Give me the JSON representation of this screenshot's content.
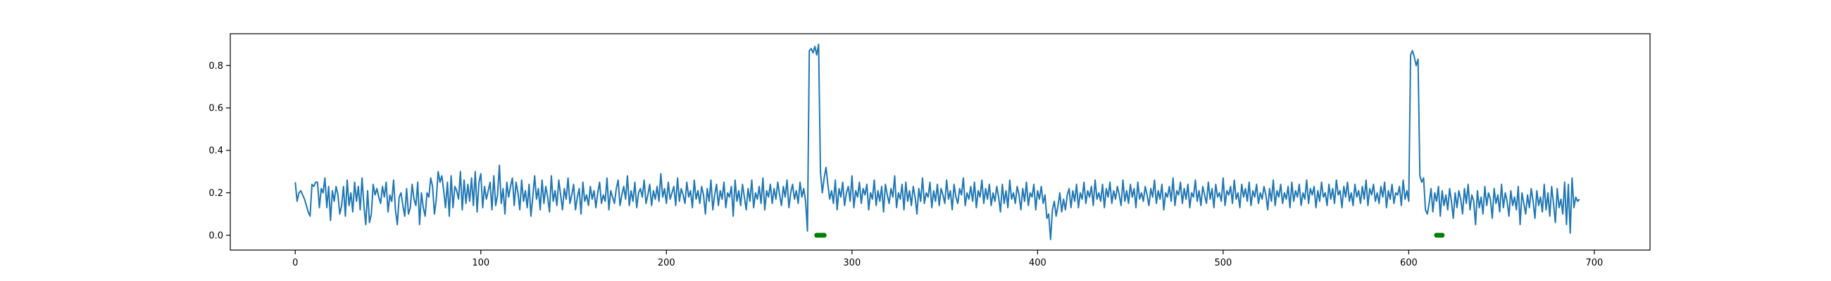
{
  "chart_data": {
    "type": "line",
    "title": "",
    "xlabel": "",
    "ylabel": "",
    "xlim": [
      -35,
      730
    ],
    "ylim": [
      -0.07,
      0.95
    ],
    "xticks": [
      0,
      100,
      200,
      300,
      400,
      500,
      600,
      700
    ],
    "yticks": [
      0.0,
      0.2,
      0.4,
      0.6,
      0.8
    ],
    "xtick_labels": [
      "0",
      "100",
      "200",
      "300",
      "400",
      "500",
      "600",
      "700"
    ],
    "ytick_labels": [
      "0.0",
      "0.2",
      "0.4",
      "0.6",
      "0.8"
    ],
    "grid": false,
    "legend": "none",
    "series": [
      {
        "color": "#1f77b4",
        "x_start": 0,
        "x_step": 1,
        "values": [
          0.25,
          0.16,
          0.2,
          0.21,
          0.19,
          0.17,
          0.14,
          0.11,
          0.09,
          0.24,
          0.23,
          0.25,
          0.25,
          0.13,
          0.22,
          0.2,
          0.27,
          0.13,
          0.23,
          0.07,
          0.21,
          0.16,
          0.23,
          0.19,
          0.1,
          0.14,
          0.23,
          0.09,
          0.26,
          0.14,
          0.2,
          0.11,
          0.25,
          0.16,
          0.23,
          0.12,
          0.27,
          0.14,
          0.05,
          0.21,
          0.06,
          0.1,
          0.24,
          0.19,
          0.22,
          0.18,
          0.15,
          0.23,
          0.18,
          0.25,
          0.11,
          0.19,
          0.16,
          0.26,
          0.12,
          0.05,
          0.18,
          0.2,
          0.14,
          0.09,
          0.22,
          0.1,
          0.13,
          0.24,
          0.17,
          0.14,
          0.25,
          0.05,
          0.2,
          0.13,
          0.09,
          0.2,
          0.18,
          0.27,
          0.23,
          0.1,
          0.17,
          0.3,
          0.25,
          0.28,
          0.21,
          0.13,
          0.25,
          0.09,
          0.28,
          0.13,
          0.23,
          0.21,
          0.17,
          0.3,
          0.12,
          0.26,
          0.15,
          0.24,
          0.16,
          0.27,
          0.14,
          0.3,
          0.11,
          0.25,
          0.29,
          0.13,
          0.23,
          0.17,
          0.21,
          0.25,
          0.12,
          0.28,
          0.14,
          0.19,
          0.33,
          0.15,
          0.22,
          0.1,
          0.25,
          0.18,
          0.23,
          0.27,
          0.14,
          0.25,
          0.2,
          0.12,
          0.26,
          0.16,
          0.21,
          0.13,
          0.24,
          0.09,
          0.18,
          0.28,
          0.17,
          0.22,
          0.12,
          0.26,
          0.15,
          0.23,
          0.18,
          0.11,
          0.28,
          0.16,
          0.21,
          0.14,
          0.26,
          0.19,
          0.12,
          0.22,
          0.17,
          0.27,
          0.15,
          0.19,
          0.24,
          0.12,
          0.18,
          0.22,
          0.1,
          0.25,
          0.16,
          0.19,
          0.14,
          0.23,
          0.17,
          0.21,
          0.13,
          0.2,
          0.25,
          0.15,
          0.19,
          0.16,
          0.27,
          0.12,
          0.21,
          0.18,
          0.15,
          0.22,
          0.26,
          0.14,
          0.19,
          0.23,
          0.17,
          0.28,
          0.14,
          0.21,
          0.16,
          0.25,
          0.13,
          0.2,
          0.22,
          0.18,
          0.26,
          0.15,
          0.19,
          0.24,
          0.14,
          0.21,
          0.17,
          0.23,
          0.16,
          0.29,
          0.18,
          0.22,
          0.15,
          0.25,
          0.17,
          0.2,
          0.23,
          0.14,
          0.27,
          0.16,
          0.22,
          0.19,
          0.15,
          0.25,
          0.18,
          0.21,
          0.13,
          0.26,
          0.17,
          0.21,
          0.15,
          0.23,
          0.19,
          0.1,
          0.22,
          0.16,
          0.26,
          0.12,
          0.19,
          0.24,
          0.14,
          0.21,
          0.17,
          0.25,
          0.13,
          0.2,
          0.18,
          0.23,
          0.09,
          0.26,
          0.16,
          0.21,
          0.14,
          0.24,
          0.18,
          0.12,
          0.22,
          0.16,
          0.26,
          0.13,
          0.2,
          0.17,
          0.23,
          0.15,
          0.27,
          0.12,
          0.21,
          0.18,
          0.24,
          0.15,
          0.22,
          0.17,
          0.25,
          0.19,
          0.14,
          0.23,
          0.18,
          0.26,
          0.13,
          0.2,
          0.24,
          0.17,
          0.21,
          0.15,
          0.25,
          0.18,
          0.22,
          0.16,
          0.02,
          0.87,
          0.88,
          0.86,
          0.89,
          0.85,
          0.9,
          0.3,
          0.2,
          0.27,
          0.32,
          0.24,
          0.17,
          0.21,
          0.15,
          0.26,
          0.12,
          0.22,
          0.18,
          0.25,
          0.14,
          0.2,
          0.23,
          0.16,
          0.28,
          0.13,
          0.21,
          0.18,
          0.25,
          0.15,
          0.22,
          0.19,
          0.24,
          0.12,
          0.2,
          0.17,
          0.26,
          0.14,
          0.21,
          0.16,
          0.23,
          0.11,
          0.24,
          0.19,
          0.15,
          0.22,
          0.18,
          0.28,
          0.13,
          0.2,
          0.17,
          0.24,
          0.12,
          0.25,
          0.16,
          0.21,
          0.14,
          0.23,
          0.18,
          0.1,
          0.22,
          0.16,
          0.27,
          0.15,
          0.2,
          0.18,
          0.25,
          0.13,
          0.21,
          0.16,
          0.24,
          0.14,
          0.22,
          0.19,
          0.15,
          0.26,
          0.17,
          0.21,
          0.12,
          0.24,
          0.18,
          0.15,
          0.22,
          0.19,
          0.27,
          0.14,
          0.2,
          0.17,
          0.23,
          0.16,
          0.25,
          0.13,
          0.21,
          0.18,
          0.26,
          0.15,
          0.22,
          0.17,
          0.24,
          0.14,
          0.2,
          0.16,
          0.23,
          0.18,
          0.11,
          0.24,
          0.15,
          0.21,
          0.13,
          0.26,
          0.17,
          0.2,
          0.15,
          0.23,
          0.19,
          0.12,
          0.22,
          0.16,
          0.25,
          0.14,
          0.2,
          0.18,
          0.24,
          0.12,
          0.21,
          0.17,
          0.23,
          0.15,
          0.19,
          0.08,
          0.1,
          -0.02,
          0.12,
          0.16,
          0.09,
          0.14,
          0.2,
          0.11,
          0.17,
          0.12,
          0.19,
          0.22,
          0.13,
          0.21,
          0.16,
          0.24,
          0.13,
          0.2,
          0.17,
          0.25,
          0.15,
          0.21,
          0.18,
          0.23,
          0.14,
          0.26,
          0.17,
          0.2,
          0.16,
          0.24,
          0.13,
          0.22,
          0.18,
          0.25,
          0.15,
          0.21,
          0.17,
          0.23,
          0.19,
          0.14,
          0.26,
          0.16,
          0.21,
          0.15,
          0.24,
          0.18,
          0.22,
          0.13,
          0.25,
          0.17,
          0.2,
          0.16,
          0.23,
          0.19,
          0.14,
          0.22,
          0.18,
          0.26,
          0.15,
          0.21,
          0.17,
          0.24,
          0.12,
          0.2,
          0.18,
          0.23,
          0.16,
          0.27,
          0.14,
          0.21,
          0.19,
          0.25,
          0.15,
          0.22,
          0.17,
          0.24,
          0.13,
          0.2,
          0.18,
          0.26,
          0.16,
          0.21,
          0.14,
          0.23,
          0.19,
          0.15,
          0.25,
          0.17,
          0.22,
          0.13,
          0.24,
          0.18,
          0.2,
          0.16,
          0.27,
          0.14,
          0.21,
          0.19,
          0.23,
          0.15,
          0.26,
          0.17,
          0.2,
          0.13,
          0.24,
          0.18,
          0.22,
          0.16,
          0.25,
          0.14,
          0.21,
          0.18,
          0.24,
          0.15,
          0.2,
          0.17,
          0.23,
          0.19,
          0.12,
          0.22,
          0.16,
          0.26,
          0.14,
          0.21,
          0.18,
          0.24,
          0.15,
          0.2,
          0.17,
          0.23,
          0.13,
          0.25,
          0.16,
          0.21,
          0.18,
          0.24,
          0.14,
          0.2,
          0.17,
          0.26,
          0.15,
          0.22,
          0.19,
          0.23,
          0.13,
          0.21,
          0.16,
          0.25,
          0.18,
          0.2,
          0.14,
          0.24,
          0.17,
          0.22,
          0.15,
          0.26,
          0.19,
          0.21,
          0.13,
          0.23,
          0.18,
          0.25,
          0.16,
          0.2,
          0.14,
          0.24,
          0.18,
          0.21,
          0.15,
          0.23,
          0.17,
          0.26,
          0.14,
          0.22,
          0.19,
          0.24,
          0.16,
          0.2,
          0.15,
          0.23,
          0.18,
          0.25,
          0.13,
          0.21,
          0.17,
          0.24,
          0.15,
          0.2,
          0.19,
          0.23,
          0.14,
          0.26,
          0.17,
          0.21,
          0.16,
          0.85,
          0.87,
          0.84,
          0.8,
          0.83,
          0.28,
          0.25,
          0.27,
          0.12,
          0.1,
          0.15,
          0.22,
          0.11,
          0.2,
          0.16,
          0.23,
          0.09,
          0.21,
          0.14,
          0.19,
          0.12,
          0.22,
          0.16,
          0.08,
          0.2,
          0.13,
          0.21,
          0.17,
          0.1,
          0.22,
          0.15,
          0.24,
          0.12,
          0.19,
          0.16,
          0.05,
          0.21,
          0.13,
          0.18,
          0.1,
          0.23,
          0.14,
          0.2,
          0.17,
          0.08,
          0.22,
          0.15,
          0.19,
          0.11,
          0.24,
          0.13,
          0.2,
          0.16,
          0.09,
          0.21,
          0.14,
          0.18,
          0.12,
          0.23,
          0.05,
          0.2,
          0.15,
          0.1,
          0.19,
          0.13,
          0.22,
          0.16,
          0.08,
          0.21,
          0.14,
          0.18,
          0.11,
          0.24,
          0.12,
          0.2,
          0.09,
          0.23,
          0.15,
          0.06,
          0.22,
          0.13,
          0.17,
          0.1,
          0.25,
          0.05,
          0.24,
          0.01,
          0.27,
          0.13,
          0.18,
          0.16,
          0.17
        ]
      },
      {
        "color": "#008000",
        "points": [
          [
            281,
            0.0
          ],
          [
            282,
            0.0
          ],
          [
            283,
            0.0
          ],
          [
            284,
            0.0
          ],
          [
            285,
            0.0
          ],
          [
            615,
            0.0
          ],
          [
            616,
            0.0
          ],
          [
            617,
            0.0
          ],
          [
            618,
            0.0
          ]
        ]
      }
    ]
  }
}
